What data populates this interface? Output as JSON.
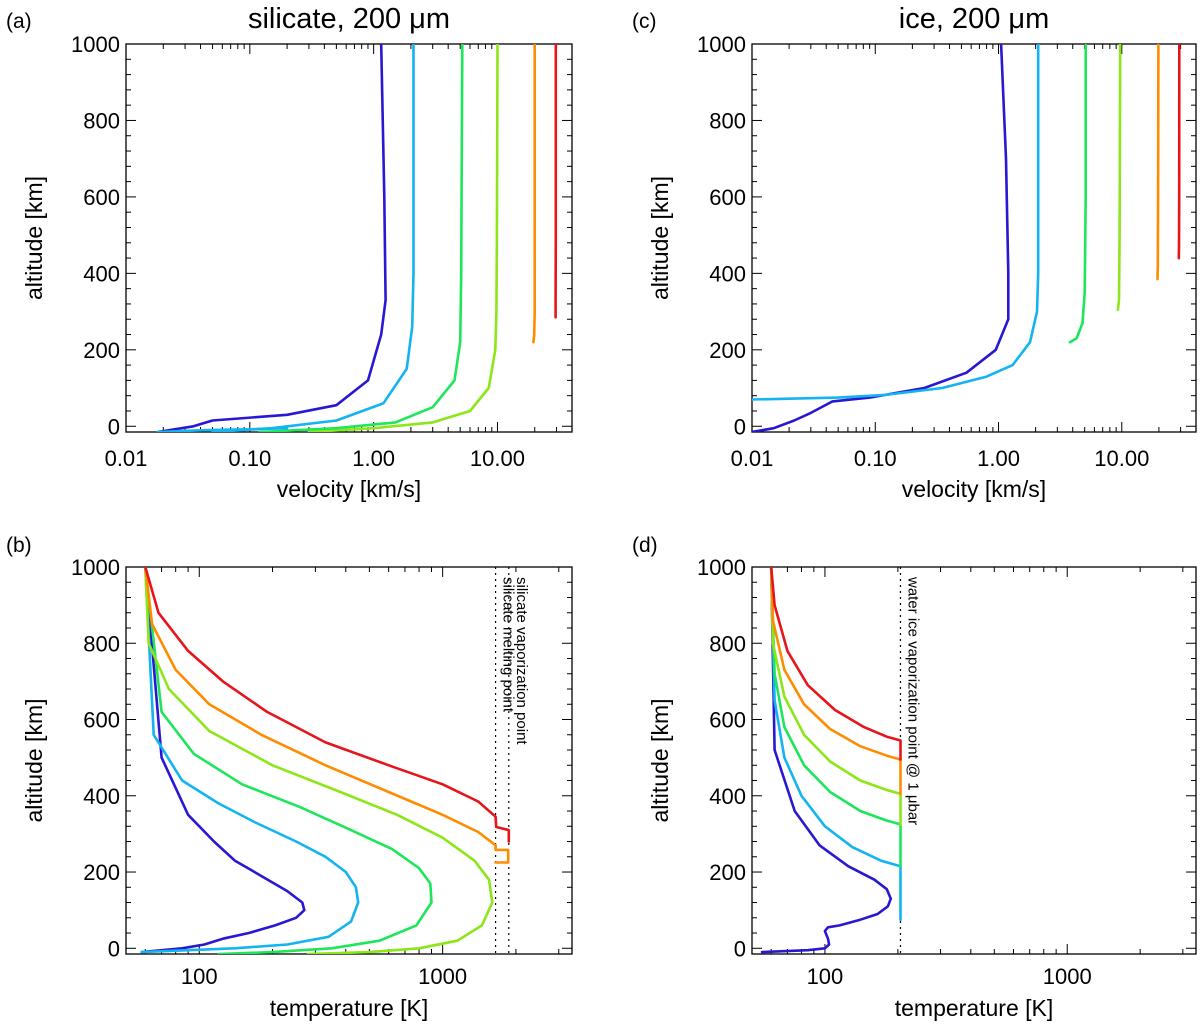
{
  "chart_data": [
    {
      "type": "line",
      "panel_label": "(a)",
      "title": "silicate, 200 μm",
      "xlabel": "velocity [km/s]",
      "ylabel": "altitude [km]",
      "xscale": "log",
      "xlim": [
        0.01,
        40
      ],
      "ylim": [
        -15,
        1000
      ],
      "xticks": [
        0.01,
        0.1,
        1,
        10
      ],
      "xtick_labels": [
        "0.01",
        "0.10",
        "1.00",
        "10.00"
      ],
      "yticks": [
        0,
        200,
        400,
        600,
        800,
        1000
      ],
      "ytick_labels": [
        "0",
        "200",
        "400",
        "600",
        "800",
        "1000"
      ],
      "series": [
        {
          "name": "red",
          "color": "#e8141b",
          "x": [
            29.5,
            29.5,
            29.6,
            29.6
          ],
          "y": [
            285,
            320,
            500,
            1000
          ]
        },
        {
          "name": "orange",
          "color": "#ff8c00",
          "x": [
            19.5,
            19.8,
            20.0,
            20.0,
            20.0
          ],
          "y": [
            220,
            240,
            300,
            600,
            1000
          ]
        },
        {
          "name": "yellow-green",
          "color": "#8ce619",
          "x": [
            0.3,
            1.0,
            3.0,
            6.0,
            8.5,
            9.6,
            9.8,
            9.9,
            10.0
          ],
          "y": [
            -15,
            -5,
            10,
            40,
            100,
            200,
            300,
            500,
            1000
          ]
        },
        {
          "name": "green",
          "color": "#1ee65a",
          "x": [
            0.12,
            0.5,
            1.5,
            3.0,
            4.5,
            5.0,
            5.1,
            5.2
          ],
          "y": [
            -15,
            -5,
            10,
            50,
            120,
            220,
            400,
            1000
          ]
        },
        {
          "name": "sky-blue",
          "color": "#14b4f0",
          "x": [
            0.05,
            0.15,
            0.5,
            1.2,
            1.85,
            2.05,
            2.1,
            2.1
          ],
          "y": [
            -15,
            -5,
            15,
            60,
            150,
            260,
            400,
            1000
          ]
        },
        {
          "name": "blue",
          "color": "#2818d2",
          "x": [
            0.018,
            0.035,
            0.05,
            0.2,
            0.5,
            0.9,
            1.15,
            1.25,
            1.22,
            1.15
          ],
          "y": [
            -15,
            0,
            15,
            30,
            55,
            120,
            240,
            330,
            600,
            1000
          ]
        },
        {
          "name": "sky-blue-low",
          "color": "#14b4f0",
          "x": [
            0.018,
            0.03,
            0.045,
            0.1,
            0.2
          ],
          "y": [
            -15,
            -12,
            -10,
            -8,
            -5
          ]
        }
      ]
    },
    {
      "type": "line",
      "panel_label": "(c)",
      "title": "ice, 200 μm",
      "xlabel": "velocity [km/s]",
      "ylabel": "altitude [km]",
      "xscale": "log",
      "xlim": [
        0.01,
        40
      ],
      "ylim": [
        -15,
        1000
      ],
      "xticks": [
        0.01,
        0.1,
        1,
        10
      ],
      "xtick_labels": [
        "0.01",
        "0.10",
        "1.00",
        "10.00"
      ],
      "yticks": [
        0,
        200,
        400,
        600,
        800,
        1000
      ],
      "ytick_labels": [
        "0",
        "200",
        "400",
        "600",
        "800",
        "1000"
      ],
      "series": [
        {
          "name": "red",
          "color": "#e8141b",
          "x": [
            29.0,
            29.1,
            29.2,
            29.3
          ],
          "y": [
            440,
            470,
            600,
            1000
          ]
        },
        {
          "name": "orange",
          "color": "#ff8c00",
          "x": [
            19.5,
            19.6,
            19.7,
            19.8
          ],
          "y": [
            385,
            420,
            600,
            1000
          ]
        },
        {
          "name": "yellow-green",
          "color": "#8ce619",
          "x": [
            9.3,
            9.5,
            9.6,
            9.7
          ],
          "y": [
            305,
            330,
            500,
            1000
          ]
        },
        {
          "name": "green",
          "color": "#1ee65a",
          "x": [
            3.8,
            4.3,
            4.8,
            5.0,
            5.1,
            5.1
          ],
          "y": [
            220,
            230,
            270,
            350,
            600,
            1000
          ]
        },
        {
          "name": "blue",
          "color": "#2818d2",
          "x": [
            0.01,
            0.015,
            0.022,
            0.03,
            0.045,
            0.09,
            0.25,
            0.55,
            0.95,
            1.2,
            1.2,
            1.15,
            1.05
          ],
          "y": [
            -15,
            -5,
            15,
            35,
            65,
            75,
            100,
            140,
            200,
            280,
            400,
            700,
            1000
          ]
        },
        {
          "name": "sky-blue",
          "color": "#14b4f0",
          "x": [
            0.01,
            0.05,
            0.12,
            0.35,
            0.8,
            1.3,
            1.8,
            2.05,
            2.1,
            2.1,
            2.1
          ],
          "y": [
            70,
            75,
            82,
            100,
            130,
            160,
            220,
            300,
            400,
            600,
            1000
          ]
        }
      ]
    },
    {
      "type": "line",
      "panel_label": "(b)",
      "xlabel": "temperature [K]",
      "ylabel": "altitude [km]",
      "xscale": "log",
      "xlim": [
        50,
        3400
      ],
      "ylim": [
        -15,
        1000
      ],
      "xticks": [
        100,
        1000
      ],
      "xtick_labels": [
        "100",
        "1000"
      ],
      "yticks": [
        0,
        200,
        400,
        600,
        800,
        1000
      ],
      "ytick_labels": [
        "0",
        "200",
        "400",
        "600",
        "800",
        "1000"
      ],
      "vlines": [
        {
          "x": 1650,
          "label": "silicate melting point"
        },
        {
          "x": 1870,
          "label": "silicate vaporization point"
        }
      ],
      "series": [
        {
          "name": "blue",
          "color": "#2818d2",
          "x": [
            58,
            85,
            105,
            125,
            160,
            205,
            250,
            270,
            265,
            230,
            185,
            140,
            115,
            90,
            70,
            60
          ],
          "y": [
            -10,
            0,
            10,
            25,
            40,
            60,
            80,
            100,
            120,
            150,
            185,
            230,
            280,
            350,
            500,
            1000
          ]
        },
        {
          "name": "sky-blue",
          "color": "#14b4f0",
          "x": [
            58,
            90,
            140,
            230,
            340,
            420,
            450,
            440,
            400,
            330,
            250,
            170,
            120,
            85,
            65,
            60
          ],
          "y": [
            -10,
            -5,
            0,
            10,
            30,
            70,
            120,
            160,
            200,
            240,
            280,
            330,
            380,
            440,
            560,
            1000
          ]
        },
        {
          "name": "green",
          "color": "#1ee65a",
          "x": [
            120,
            200,
            350,
            550,
            780,
            900,
            890,
            800,
            620,
            420,
            260,
            150,
            95,
            70,
            60
          ],
          "y": [
            -15,
            -10,
            0,
            20,
            60,
            120,
            170,
            210,
            260,
            310,
            370,
            430,
            510,
            620,
            1000
          ]
        },
        {
          "name": "yellow-green",
          "color": "#8ce619",
          "x": [
            280,
            500,
            800,
            1150,
            1450,
            1600,
            1550,
            1350,
            1000,
            650,
            380,
            200,
            110,
            75,
            62,
            60
          ],
          "y": [
            -15,
            -10,
            0,
            20,
            60,
            120,
            180,
            230,
            290,
            350,
            410,
            480,
            570,
            680,
            800,
            1000
          ]
        },
        {
          "name": "orange",
          "color": "#ff8c00",
          "x": [
            1650,
            1860,
            1860,
            1650,
            1650,
            1400,
            1000,
            600,
            330,
            180,
            110,
            80,
            64,
            60
          ],
          "y": [
            225,
            225,
            258,
            258,
            270,
            305,
            350,
            410,
            480,
            560,
            640,
            730,
            850,
            1000
          ]
        },
        {
          "name": "red",
          "color": "#e8141b",
          "x": [
            1870,
            1870,
            1660,
            1650,
            1400,
            1000,
            600,
            330,
            190,
            125,
            90,
            68,
            60
          ],
          "y": [
            280,
            310,
            318,
            345,
            385,
            430,
            480,
            540,
            620,
            700,
            780,
            880,
            1000
          ]
        }
      ]
    },
    {
      "type": "line",
      "panel_label": "(d)",
      "xlabel": "temperature [K]",
      "ylabel": "altitude [km]",
      "xscale": "log",
      "xlim": [
        50,
        3400
      ],
      "ylim": [
        -15,
        1000
      ],
      "xticks": [
        100,
        1000
      ],
      "xtick_labels": [
        "100",
        "1000"
      ],
      "yticks": [
        0,
        200,
        400,
        600,
        800,
        1000
      ],
      "ytick_labels": [
        "0",
        "200",
        "400",
        "600",
        "800",
        "1000"
      ],
      "vlines": [
        {
          "x": 205,
          "label": "water ice vaporization point @ 1 μbar"
        }
      ],
      "series": [
        {
          "name": "blue",
          "color": "#2818d2",
          "x": [
            55,
            85,
            100,
            104,
            103,
            100,
            103,
            115,
            140,
            165,
            182,
            187,
            180,
            160,
            125,
            95,
            75,
            62,
            60
          ],
          "y": [
            -10,
            -5,
            0,
            10,
            25,
            45,
            55,
            60,
            75,
            90,
            110,
            130,
            155,
            180,
            215,
            270,
            360,
            520,
            1000
          ]
        },
        {
          "name": "sky-blue",
          "color": "#14b4f0",
          "x": [
            205,
            205,
            170,
            130,
            100,
            80,
            68,
            62,
            60
          ],
          "y": [
            75,
            215,
            230,
            265,
            320,
            400,
            500,
            650,
            1000
          ]
        },
        {
          "name": "green",
          "color": "#1ee65a",
          "x": [
            205,
            205,
            180,
            140,
            105,
            82,
            68,
            62,
            60
          ],
          "y": [
            215,
            325,
            335,
            360,
            410,
            480,
            580,
            720,
            1000
          ]
        },
        {
          "name": "yellow-green",
          "color": "#8ce619",
          "x": [
            205,
            205,
            180,
            140,
            105,
            82,
            68,
            61,
            60
          ],
          "y": [
            325,
            405,
            415,
            440,
            490,
            560,
            660,
            800,
            1000
          ]
        },
        {
          "name": "orange",
          "color": "#ff8c00",
          "x": [
            205,
            205,
            180,
            140,
            105,
            82,
            68,
            61,
            60
          ],
          "y": [
            405,
            495,
            505,
            530,
            575,
            640,
            730,
            860,
            1000
          ]
        },
        {
          "name": "red",
          "color": "#e8141b",
          "x": [
            205,
            205,
            180,
            145,
            110,
            85,
            70,
            62,
            60
          ],
          "y": [
            495,
            545,
            555,
            580,
            625,
            690,
            780,
            900,
            1000
          ]
        }
      ]
    }
  ]
}
